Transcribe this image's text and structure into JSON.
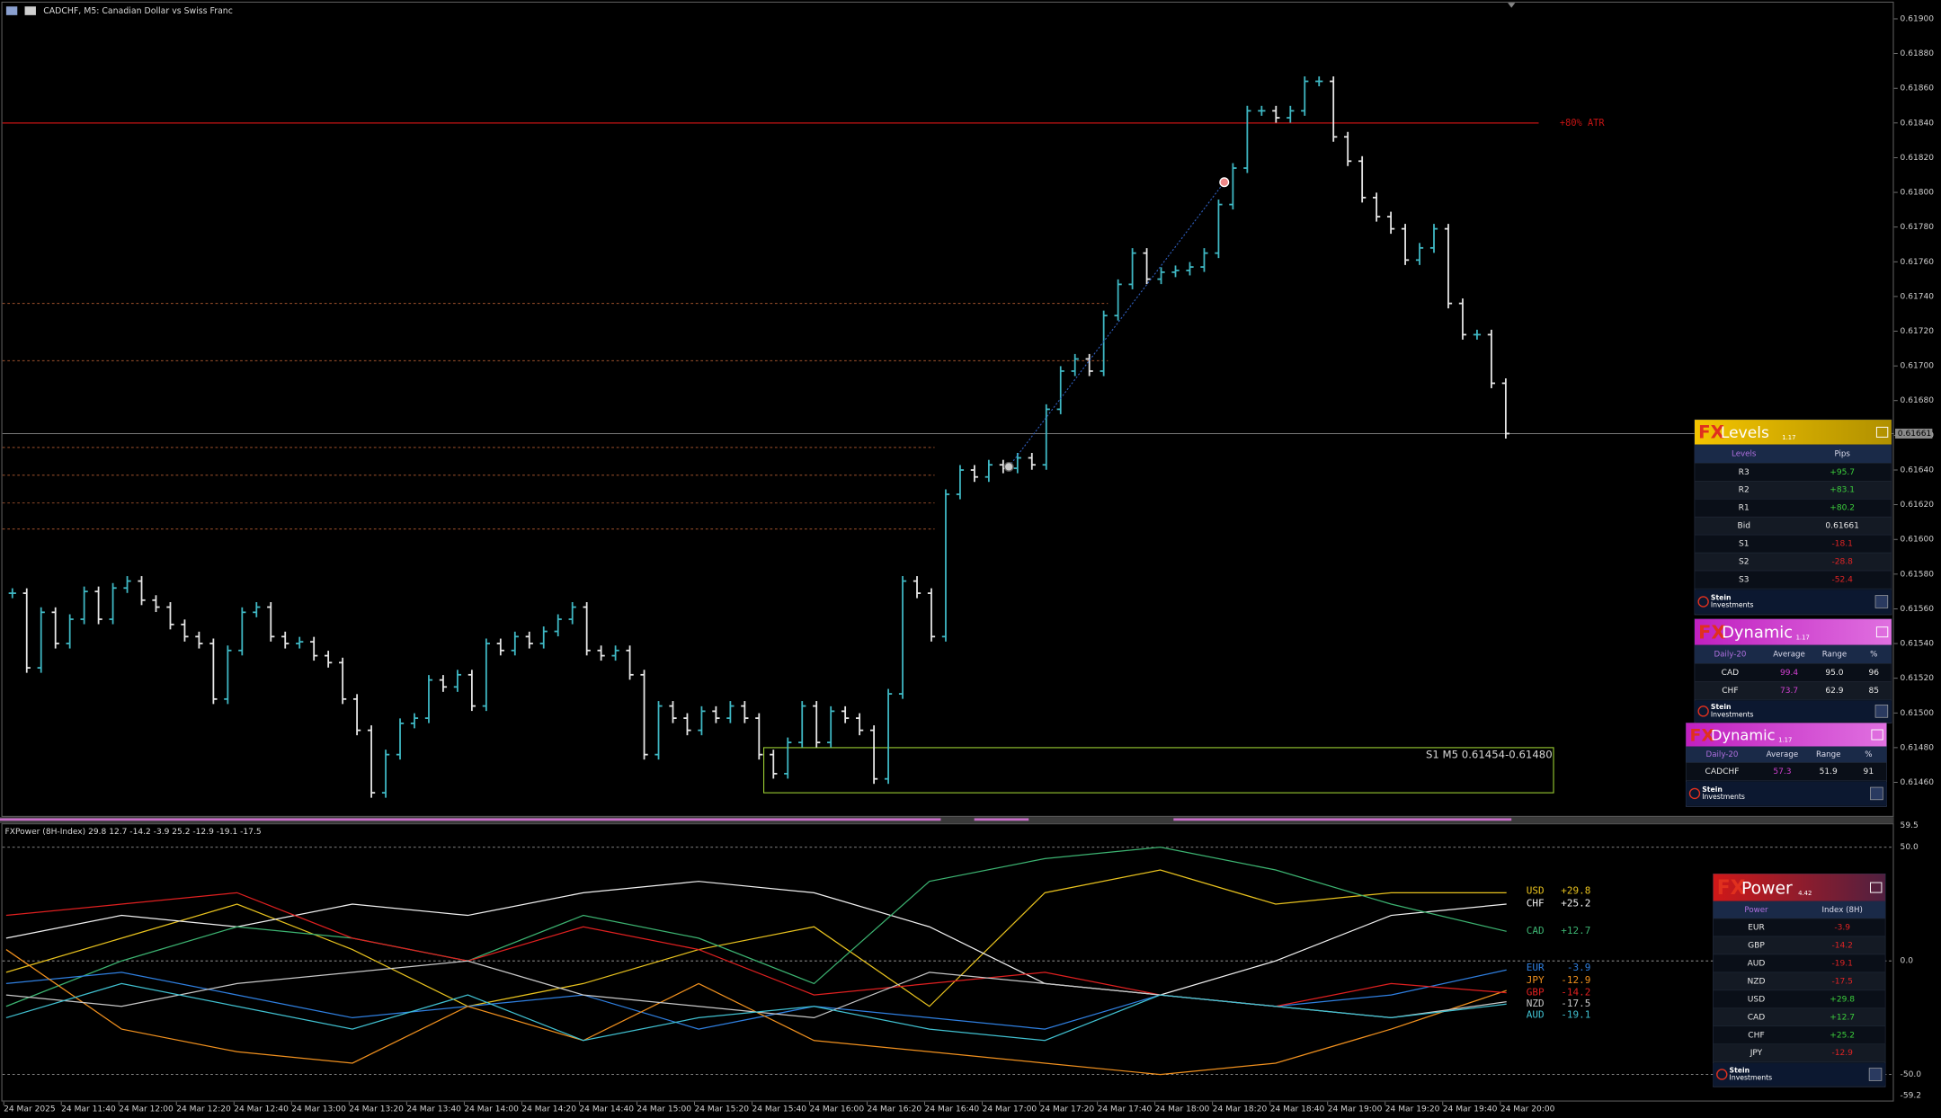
{
  "window": {
    "title": "CADCHF, M5:  Canadian Dollar vs Swiss Franc"
  },
  "price_chart": {
    "type": "bar",
    "closes": [
      0.61569,
      0.61526,
      0.61558,
      0.6154,
      0.61554,
      0.6157,
      0.61554,
      0.61572,
      0.61576,
      0.61565,
      0.61561,
      0.61551,
      0.61544,
      0.6154,
      0.61508,
      0.61536,
      0.61558,
      0.61561,
      0.61544,
      0.6154,
      0.61541,
      0.61533,
      0.61529,
      0.61508,
      0.6149,
      0.61454,
      0.61476,
      0.61494,
      0.61497,
      0.61519,
      0.61515,
      0.61522,
      0.61504,
      0.6154,
      0.61536,
      0.61544,
      0.6154,
      0.61547,
      0.61554,
      0.61561,
      0.61536,
      0.61533,
      0.61536,
      0.61522,
      0.61476,
      0.61504,
      0.61497,
      0.6149,
      0.61501,
      0.61497,
      0.61504,
      0.61497,
      0.61476,
      0.61465,
      0.61483,
      0.61504,
      0.61483,
      0.61501,
      0.61497,
      0.6149,
      0.61462,
      0.61511,
      0.61576,
      0.61569,
      0.61544,
      0.61626,
      0.6164,
      0.61636,
      0.61643,
      0.61641,
      0.61647,
      0.61643,
      0.61675,
      0.61697,
      0.61704,
      0.61697,
      0.61729,
      0.61747,
      0.61765,
      0.6175,
      0.61754,
      0.61755,
      0.61757,
      0.61765,
      0.61793,
      0.61814,
      0.61847,
      0.61847,
      0.61843,
      0.61847,
      0.61864,
      0.61864,
      0.61832,
      0.61818,
      0.61797,
      0.61786,
      0.61779,
      0.61761,
      0.61768,
      0.61779,
      0.61736,
      0.61718,
      0.61718,
      0.6169,
      0.61661
    ],
    "up_color": "#3fb8c4",
    "down_color": "#e6e6e6",
    "price_ticks": [
      {
        "value": 0.619,
        "label": "0.61900"
      },
      {
        "value": 0.6188,
        "label": "0.61880"
      },
      {
        "value": 0.6186,
        "label": "0.61860"
      },
      {
        "value": 0.6184,
        "label": "0.61840"
      },
      {
        "value": 0.6182,
        "label": "0.61820"
      },
      {
        "value": 0.618,
        "label": "0.61800"
      },
      {
        "value": 0.6178,
        "label": "0.61780"
      },
      {
        "value": 0.6176,
        "label": "0.61760"
      },
      {
        "value": 0.6174,
        "label": "0.61740"
      },
      {
        "value": 0.6172,
        "label": "0.61720"
      },
      {
        "value": 0.617,
        "label": "0.61700"
      },
      {
        "value": 0.6168,
        "label": "0.61680"
      },
      {
        "value": 0.6166,
        "label": "0.61660"
      },
      {
        "value": 0.6164,
        "label": "0.61640"
      },
      {
        "value": 0.6162,
        "label": "0.61620"
      },
      {
        "value": 0.616,
        "label": "0.61600"
      },
      {
        "value": 0.6158,
        "label": "0.61580"
      },
      {
        "value": 0.6156,
        "label": "0.61560"
      },
      {
        "value": 0.6154,
        "label": "0.61540"
      },
      {
        "value": 0.6152,
        "label": "0.61520"
      },
      {
        "value": 0.615,
        "label": "0.61500"
      },
      {
        "value": 0.6148,
        "label": "0.61480"
      },
      {
        "value": 0.6146,
        "label": "0.61460"
      }
    ],
    "current_price": {
      "value": 0.61661,
      "label": "0.61661"
    },
    "atr_line": {
      "value": 0.6184,
      "label": "+80% ATR",
      "color": "#c81414"
    },
    "levels": [
      0.61736,
      0.61703,
      0.61653,
      0.61637,
      0.61621,
      0.61606
    ],
    "zone": {
      "low": 0.61454,
      "high": 0.6148,
      "label": "S1 M5 0.61454-0.61480",
      "color": "#9acd32"
    }
  },
  "time_axis": [
    "24 Mar 2025",
    "24 Mar 11:40",
    "24 Mar 12:00",
    "24 Mar 12:20",
    "24 Mar 12:40",
    "24 Mar 13:00",
    "24 Mar 13:20",
    "24 Mar 13:40",
    "24 Mar 14:00",
    "24 Mar 14:20",
    "24 Mar 14:40",
    "24 Mar 15:00",
    "24 Mar 15:20",
    "24 Mar 15:40",
    "24 Mar 16:00",
    "24 Mar 16:20",
    "24 Mar 16:40",
    "24 Mar 17:00",
    "24 Mar 17:20",
    "24 Mar 17:40",
    "24 Mar 18:00",
    "24 Mar 18:20",
    "24 Mar 18:40",
    "24 Mar 19:00",
    "24 Mar 19:20",
    "24 Mar 19:40",
    "24 Mar 20:00"
  ],
  "indicator": {
    "title": "FXPower (8H-Index) 29.8 12.7 -14.2 -3.9 25.2 -12.9 -19.1 -17.5",
    "ticks": [
      {
        "value": 59.5,
        "label": "59.5"
      },
      {
        "value": 50,
        "label": "50.0"
      },
      {
        "value": 0,
        "label": "0.0"
      },
      {
        "value": -50,
        "label": "-50.0"
      },
      {
        "value": -59.2,
        "label": "-59.2"
      }
    ],
    "series": [
      {
        "name": "USD",
        "label": "+29.8",
        "color": "#e8c21e",
        "values": [
          -5,
          10,
          25,
          5,
          -20,
          -10,
          5,
          15,
          -20,
          30,
          40,
          25,
          30,
          30
        ]
      },
      {
        "name": "CHF",
        "label": "+25.2",
        "color": "#f2f2f2",
        "values": [
          10,
          20,
          15,
          25,
          20,
          30,
          35,
          30,
          15,
          -10,
          -15,
          0,
          20,
          25
        ]
      },
      {
        "name": "CAD",
        "label": "+12.7",
        "color": "#3cb371",
        "values": [
          -20,
          0,
          15,
          10,
          0,
          20,
          10,
          -10,
          35,
          45,
          50,
          40,
          25,
          13
        ]
      },
      {
        "name": "EUR",
        "label": "-3.9",
        "color": "#2f7fe0",
        "values": [
          -10,
          -5,
          -15,
          -25,
          -20,
          -15,
          -30,
          -20,
          -25,
          -30,
          -15,
          -20,
          -15,
          -4
        ]
      },
      {
        "name": "JPY",
        "label": "-12.9",
        "color": "#f0901e",
        "values": [
          5,
          -30,
          -40,
          -45,
          -20,
          -35,
          -10,
          -35,
          -40,
          -45,
          -50,
          -45,
          -30,
          -13
        ]
      },
      {
        "name": "GBP",
        "label": "-14.2",
        "color": "#e02020",
        "values": [
          20,
          25,
          30,
          10,
          0,
          15,
          5,
          -15,
          -10,
          -5,
          -15,
          -20,
          -10,
          -14
        ]
      },
      {
        "name": "NZD",
        "label": "-17.5",
        "color": "#c8c8c8",
        "values": [
          -15,
          -20,
          -10,
          -5,
          0,
          -15,
          -20,
          -25,
          -5,
          -10,
          -15,
          -20,
          -25,
          -18
        ]
      },
      {
        "name": "AUD",
        "label": "-19.1",
        "color": "#40c0d0",
        "values": [
          -25,
          -10,
          -20,
          -30,
          -15,
          -35,
          -25,
          -20,
          -30,
          -35,
          -15,
          -20,
          -25,
          -19
        ]
      }
    ]
  },
  "fx_levels": {
    "brand": "FX",
    "name": "Levels",
    "version": "1.17",
    "columns": [
      "Levels",
      "Pips"
    ],
    "rows": [
      [
        "R3",
        "+95.7"
      ],
      [
        "R2",
        "+83.1"
      ],
      [
        "R1",
        "+80.2"
      ],
      [
        "Bid",
        "0.61661"
      ],
      [
        "S1",
        "-18.1"
      ],
      [
        "S2",
        "-28.8"
      ],
      [
        "S3",
        "-52.4"
      ]
    ],
    "footer": [
      "Stein",
      "Investments"
    ]
  },
  "fx_dynamic": {
    "brand": "FX",
    "name": "Dynamic",
    "version": "1.17",
    "columns": [
      "Daily-20",
      "Average",
      "Range",
      "%"
    ],
    "rows": [
      [
        "CAD",
        "99.4",
        "95.0",
        "96"
      ],
      [
        "CHF",
        "73.7",
        "62.9",
        "85"
      ]
    ],
    "footer": [
      "Stein",
      "Investments"
    ]
  },
  "fx_dynamic_pair": {
    "brand": "FX",
    "name": "Dynamic",
    "version": "1.17",
    "columns": [
      "Daily-20",
      "Average",
      "Range",
      "%"
    ],
    "rows": [
      [
        "CADCHF",
        "57.3",
        "51.9",
        "91"
      ]
    ],
    "footer": [
      "Stein",
      "Investments"
    ]
  },
  "fx_power": {
    "brand": "FX",
    "name": "Power",
    "version": "4.42",
    "columns": [
      "Power",
      "Index (8H)"
    ],
    "rows": [
      [
        "EUR",
        "-3.9"
      ],
      [
        "GBP",
        "-14.2"
      ],
      [
        "AUD",
        "-19.1"
      ],
      [
        "NZD",
        "-17.5"
      ],
      [
        "USD",
        "+29.8"
      ],
      [
        "CAD",
        "+12.7"
      ],
      [
        "CHF",
        "+25.2"
      ],
      [
        "JPY",
        "-12.9"
      ]
    ],
    "footer": [
      "Stein",
      "Investments"
    ]
  }
}
